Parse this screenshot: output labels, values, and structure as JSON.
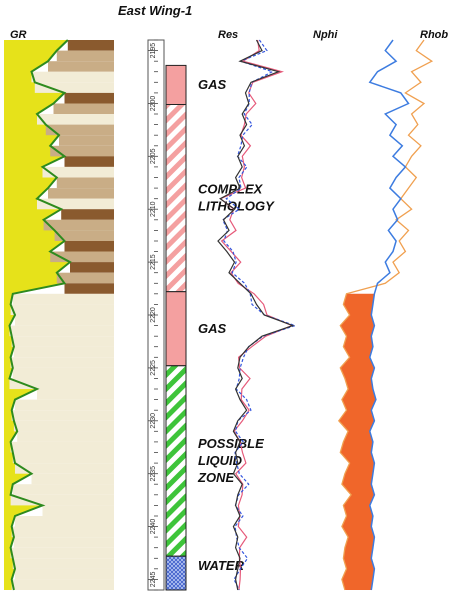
{
  "title": "East Wing-1",
  "tracks": {
    "gr": {
      "label": "GR"
    },
    "res": {
      "label": "Res"
    },
    "nphi": {
      "label": "Nphi"
    },
    "rhob": {
      "label": "Rhob"
    }
  },
  "colors": {
    "gr_curve": "#2e8b1e",
    "gr_sand": "#e6e21a",
    "gr_shale": "#8a5a2e",
    "res_deep": "#333333",
    "res_shallow": "#3355dd",
    "res_medium": "#e65a7a",
    "nphi": "#3d7ce0",
    "rhob": "#f0a050",
    "crossover_fill": "#f0662a",
    "gas": "#f4a0a0",
    "complex": "#f4a0a0",
    "liquid": "#3ec43a",
    "water": "#5a7ad8"
  },
  "chart_data": {
    "type": "line",
    "title": "East Wing-1",
    "depth_axis": {
      "ticks": [
        2195,
        2200,
        2205,
        2210,
        2215,
        2220,
        2225,
        2230,
        2235,
        2240,
        2245
      ],
      "range": [
        2194,
        2246
      ]
    },
    "zones": [
      {
        "label": "GAS",
        "top": 2196.4,
        "base": 2200.1,
        "pattern": "solid"
      },
      {
        "label": "COMPLEX\nLITHOLOGY",
        "top": 2200.1,
        "base": 2217.8,
        "pattern": "hatch"
      },
      {
        "label": "GAS",
        "top": 2217.8,
        "base": 2224.8,
        "pattern": "solid"
      },
      {
        "label": "POSSIBLE\nLIQUID\nZONE",
        "top": 2224.8,
        "base": 2242.8,
        "pattern": "hatch"
      },
      {
        "label": "WATER",
        "top": 2242.8,
        "base": 2246,
        "pattern": "grid"
      }
    ],
    "series": [
      {
        "name": "GR",
        "depth": [
          2194,
          2195,
          2196,
          2197,
          2198,
          2199,
          2200,
          2201,
          2202,
          2203,
          2204,
          2205,
          2206,
          2207,
          2208,
          2209,
          2210,
          2211,
          2212,
          2213,
          2214,
          2215,
          2216,
          2217,
          2218,
          2219,
          2220,
          2221,
          2222,
          2223,
          2224,
          2225,
          2226,
          2227,
          2228,
          2229,
          2230,
          2231,
          2232,
          2233,
          2234,
          2235,
          2236,
          2237,
          2238,
          2239,
          2240,
          2241,
          2242,
          2243,
          2244,
          2245,
          2246
        ],
        "values": [
          0.58,
          0.48,
          0.4,
          0.25,
          0.28,
          0.55,
          0.45,
          0.3,
          0.38,
          0.5,
          0.42,
          0.55,
          0.35,
          0.48,
          0.4,
          0.3,
          0.52,
          0.36,
          0.46,
          0.55,
          0.42,
          0.6,
          0.48,
          0.55,
          0.08,
          0.06,
          0.1,
          0.05,
          0.07,
          0.09,
          0.06,
          0.08,
          0.05,
          0.3,
          0.1,
          0.07,
          0.09,
          0.12,
          0.06,
          0.08,
          0.1,
          0.25,
          0.08,
          0.06,
          0.35,
          0.1,
          0.07,
          0.09,
          0.06,
          0.08,
          0.1,
          0.07,
          0.09
        ]
      },
      {
        "name": "Res",
        "depth": [
          2194,
          2195,
          2196,
          2197,
          2198,
          2199,
          2200,
          2201,
          2202,
          2203,
          2204,
          2205,
          2206,
          2207,
          2208,
          2209,
          2210,
          2211,
          2212,
          2213,
          2214,
          2215,
          2216,
          2217,
          2218,
          2219,
          2220,
          2221,
          2222,
          2223,
          2224,
          2225,
          2226,
          2227,
          2228,
          2229,
          2230,
          2231,
          2232,
          2233,
          2234,
          2235,
          2236,
          2237,
          2238,
          2239,
          2240,
          2241,
          2242,
          2243,
          2244,
          2245,
          2246
        ],
        "values": [
          0.55,
          0.6,
          0.4,
          0.75,
          0.5,
          0.45,
          0.48,
          0.42,
          0.46,
          0.4,
          0.44,
          0.38,
          0.42,
          0.36,
          0.4,
          0.22,
          0.35,
          0.25,
          0.3,
          0.2,
          0.28,
          0.35,
          0.3,
          0.4,
          0.5,
          0.55,
          0.62,
          0.88,
          0.6,
          0.48,
          0.4,
          0.38,
          0.42,
          0.36,
          0.4,
          0.46,
          0.38,
          0.34,
          0.4,
          0.36,
          0.38,
          0.34,
          0.42,
          0.38,
          0.36,
          0.4,
          0.34,
          0.38,
          0.36,
          0.4,
          0.38,
          0.36,
          0.38
        ]
      },
      {
        "name": "Nphi",
        "depth": [
          2194,
          2195,
          2196,
          2197,
          2198,
          2199,
          2200,
          2201,
          2202,
          2203,
          2204,
          2205,
          2206,
          2207,
          2208,
          2209,
          2210,
          2211,
          2212,
          2213,
          2214,
          2215,
          2216,
          2217,
          2218,
          2219,
          2220,
          2221,
          2222,
          2223,
          2224,
          2225,
          2226,
          2227,
          2228,
          2229,
          2230,
          2231,
          2232,
          2233,
          2234,
          2235,
          2236,
          2237,
          2238,
          2239,
          2240,
          2241,
          2242,
          2243,
          2244,
          2245,
          2246
        ],
        "values": [
          0.6,
          0.55,
          0.62,
          0.5,
          0.45,
          0.65,
          0.7,
          0.55,
          0.62,
          0.58,
          0.66,
          0.6,
          0.68,
          0.62,
          0.58,
          0.65,
          0.6,
          0.63,
          0.57,
          0.62,
          0.6,
          0.55,
          0.58,
          0.5,
          0.48,
          0.47,
          0.46,
          0.48,
          0.46,
          0.47,
          0.45,
          0.48,
          0.46,
          0.47,
          0.49,
          0.46,
          0.48,
          0.45,
          0.47,
          0.46,
          0.48,
          0.47,
          0.46,
          0.48,
          0.45,
          0.47,
          0.46,
          0.48,
          0.47,
          0.46,
          0.48,
          0.47,
          0.46
        ]
      },
      {
        "name": "Rhob",
        "depth": [
          2194,
          2195,
          2196,
          2197,
          2198,
          2199,
          2200,
          2201,
          2202,
          2203,
          2204,
          2205,
          2206,
          2207,
          2208,
          2209,
          2210,
          2211,
          2212,
          2213,
          2214,
          2215,
          2216,
          2217,
          2218,
          2219,
          2220,
          2221,
          2222,
          2223,
          2224,
          2225,
          2226,
          2227,
          2228,
          2229,
          2230,
          2231,
          2232,
          2233,
          2234,
          2235,
          2236,
          2237,
          2238,
          2239,
          2240,
          2241,
          2242,
          2243,
          2244,
          2245,
          2246
        ],
        "values": [
          0.8,
          0.75,
          0.85,
          0.72,
          0.78,
          0.68,
          0.8,
          0.72,
          0.76,
          0.7,
          0.78,
          0.72,
          0.68,
          0.75,
          0.7,
          0.65,
          0.72,
          0.62,
          0.7,
          0.64,
          0.68,
          0.6,
          0.64,
          0.55,
          0.3,
          0.28,
          0.32,
          0.26,
          0.3,
          0.28,
          0.32,
          0.26,
          0.29,
          0.31,
          0.27,
          0.3,
          0.25,
          0.31,
          0.28,
          0.26,
          0.32,
          0.29,
          0.27,
          0.33,
          0.28,
          0.3,
          0.27,
          0.31,
          0.29,
          0.28,
          0.3,
          0.27,
          0.29
        ]
      }
    ]
  }
}
